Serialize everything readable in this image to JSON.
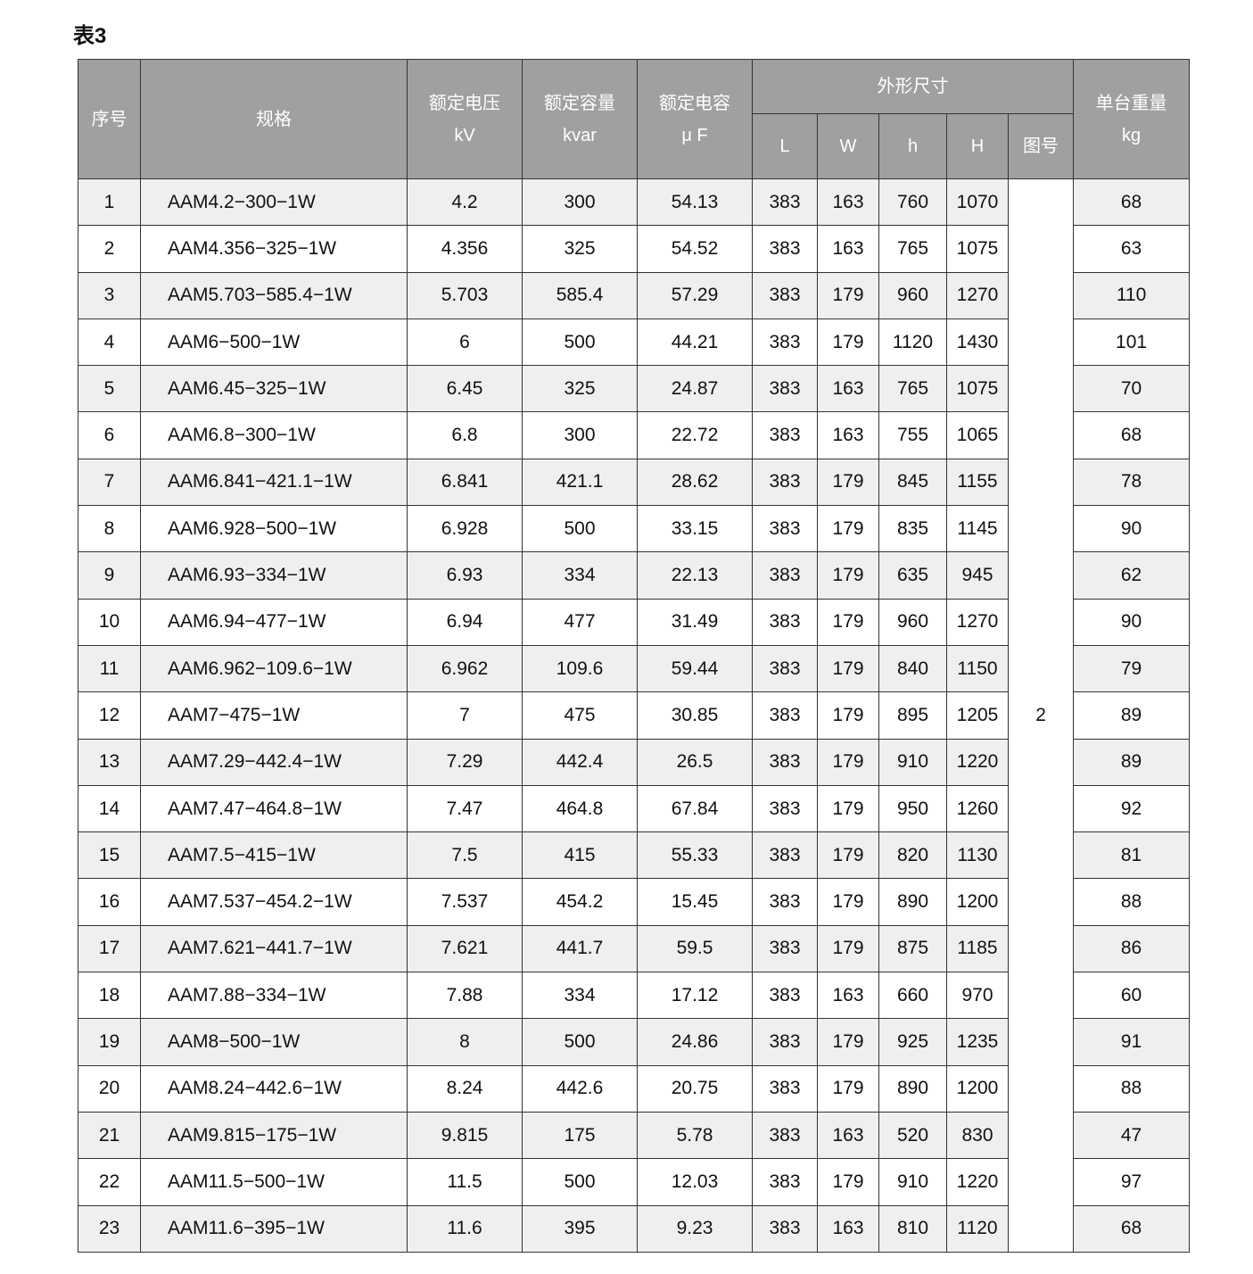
{
  "title": "表3",
  "header": {
    "seq": "序号",
    "spec": "规格",
    "voltage": "额定电压",
    "voltage_unit": "kV",
    "capacity": "额定容量",
    "capacity_unit": "kvar",
    "capacitance": "额定电容",
    "capacitance_unit": "μ F",
    "dimensions": "外形尺寸",
    "L": "L",
    "W": "W",
    "h": "h",
    "H": "H",
    "fig": "图号",
    "weight": "单台重量",
    "weight_unit": "kg"
  },
  "figure_no": "2",
  "rows": [
    [
      "1",
      "AAM4.2−300−1W",
      "4.2",
      "300",
      "54.13",
      "383",
      "163",
      "760",
      "1070",
      "68"
    ],
    [
      "2",
      "AAM4.356−325−1W",
      "4.356",
      "325",
      "54.52",
      "383",
      "163",
      "765",
      "1075",
      "63"
    ],
    [
      "3",
      "AAM5.703−585.4−1W",
      "5.703",
      "585.4",
      "57.29",
      "383",
      "179",
      "960",
      "1270",
      "110"
    ],
    [
      "4",
      "AAM6−500−1W",
      "6",
      "500",
      "44.21",
      "383",
      "179",
      "1120",
      "1430",
      "101"
    ],
    [
      "5",
      "AAM6.45−325−1W",
      "6.45",
      "325",
      "24.87",
      "383",
      "163",
      "765",
      "1075",
      "70"
    ],
    [
      "6",
      "AAM6.8−300−1W",
      "6.8",
      "300",
      "22.72",
      "383",
      "163",
      "755",
      "1065",
      "68"
    ],
    [
      "7",
      "AAM6.841−421.1−1W",
      "6.841",
      "421.1",
      "28.62",
      "383",
      "179",
      "845",
      "1155",
      "78"
    ],
    [
      "8",
      "AAM6.928−500−1W",
      "6.928",
      "500",
      "33.15",
      "383",
      "179",
      "835",
      "1145",
      "90"
    ],
    [
      "9",
      "AAM6.93−334−1W",
      "6.93",
      "334",
      "22.13",
      "383",
      "179",
      "635",
      "945",
      "62"
    ],
    [
      "10",
      "AAM6.94−477−1W",
      "6.94",
      "477",
      "31.49",
      "383",
      "179",
      "960",
      "1270",
      "90"
    ],
    [
      "11",
      "AAM6.962−109.6−1W",
      "6.962",
      "109.6",
      "59.44",
      "383",
      "179",
      "840",
      "1150",
      "79"
    ],
    [
      "12",
      "AAM7−475−1W",
      "7",
      "475",
      "30.85",
      "383",
      "179",
      "895",
      "1205",
      "89"
    ],
    [
      "13",
      "AAM7.29−442.4−1W",
      "7.29",
      "442.4",
      "26.5",
      "383",
      "179",
      "910",
      "1220",
      "89"
    ],
    [
      "14",
      "AAM7.47−464.8−1W",
      "7.47",
      "464.8",
      "67.84",
      "383",
      "179",
      "950",
      "1260",
      "92"
    ],
    [
      "15",
      "AAM7.5−415−1W",
      "7.5",
      "415",
      "55.33",
      "383",
      "179",
      "820",
      "1130",
      "81"
    ],
    [
      "16",
      "AAM7.537−454.2−1W",
      "7.537",
      "454.2",
      "15.45",
      "383",
      "179",
      "890",
      "1200",
      "88"
    ],
    [
      "17",
      "AAM7.621−441.7−1W",
      "7.621",
      "441.7",
      "59.5",
      "383",
      "179",
      "875",
      "1185",
      "86"
    ],
    [
      "18",
      "AAM7.88−334−1W",
      "7.88",
      "334",
      "17.12",
      "383",
      "163",
      "660",
      "970",
      "60"
    ],
    [
      "19",
      "AAM8−500−1W",
      "8",
      "500",
      "24.86",
      "383",
      "179",
      "925",
      "1235",
      "91"
    ],
    [
      "20",
      "AAM8.24−442.6−1W",
      "8.24",
      "442.6",
      "20.75",
      "383",
      "179",
      "890",
      "1200",
      "88"
    ],
    [
      "21",
      "AAM9.815−175−1W",
      "9.815",
      "175",
      "5.78",
      "383",
      "163",
      "520",
      "830",
      "47"
    ],
    [
      "22",
      "AAM11.5−500−1W",
      "11.5",
      "500",
      "12.03",
      "383",
      "179",
      "910",
      "1220",
      "97"
    ],
    [
      "23",
      "AAM11.6−395−1W",
      "11.6",
      "395",
      "9.23",
      "383",
      "163",
      "810",
      "1120",
      "68"
    ]
  ]
}
